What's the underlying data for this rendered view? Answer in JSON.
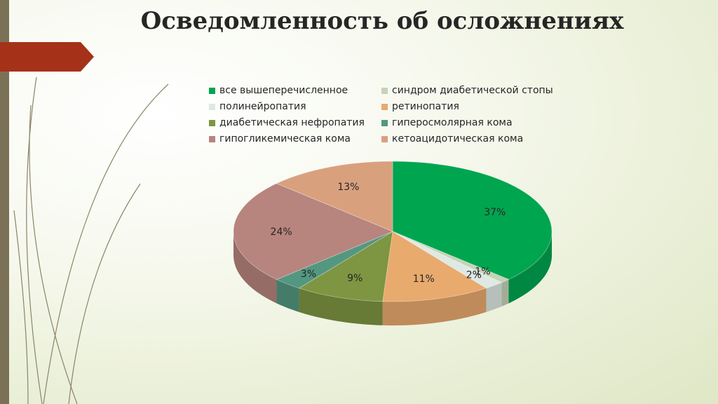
{
  "slide": {
    "title": "Осведомленность об осложнениях"
  },
  "chart_data": {
    "type": "pie",
    "title": "",
    "legend_position": "top",
    "categories": [
      "все вышеперечисленное",
      "синдром диабетической стопы",
      "полинейропатия",
      "ретинопатия",
      "диабетическая нефропатия",
      "гиперосмолярная кома",
      "гипогликемическая кома",
      "кетоацидотическая кома"
    ],
    "values": [
      37,
      1,
      2,
      11,
      9,
      3,
      24,
      13
    ],
    "labels": [
      "37%",
      "1%",
      "2%",
      "11%",
      "9%",
      "3%",
      "24%",
      "13%"
    ],
    "colors": [
      "#00a550",
      "#c5d3b7",
      "#dfe9e4",
      "#e9aa6e",
      "#7e9542",
      "#549780",
      "#b7847e",
      "#d9a07e"
    ]
  }
}
